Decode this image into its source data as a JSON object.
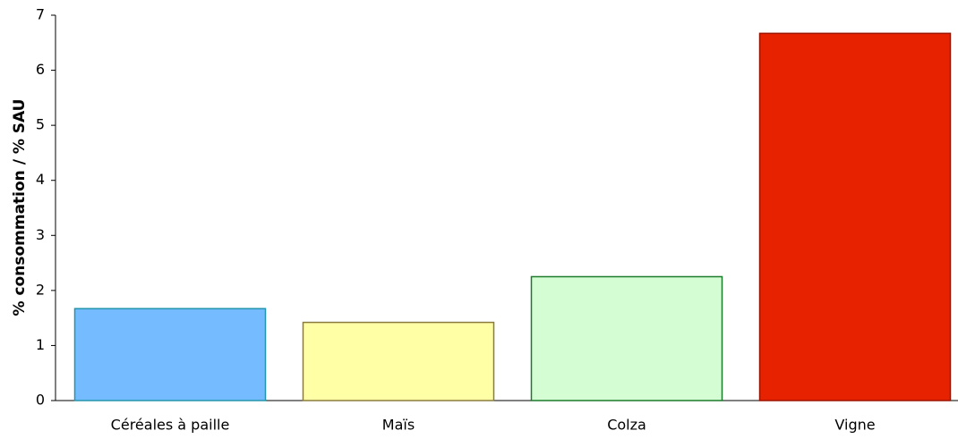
{
  "chart_data": {
    "type": "bar",
    "ylabel": "% consommation / % SAU",
    "categories": [
      "Céréales à paille",
      "Maïs",
      "Colza",
      "Vigne"
    ],
    "values": [
      1.67,
      1.42,
      2.25,
      6.67
    ],
    "colors": [
      "#74bbff",
      "#ffffa6",
      "#d4fdd4",
      "#e62200"
    ],
    "edge_colors": [
      "#2396ac",
      "#8a7b3c",
      "#1d7a2c",
      "#9e1200"
    ],
    "ylim": [
      0,
      7
    ],
    "yticks": [
      0,
      1,
      2,
      3,
      4,
      5,
      6,
      7
    ],
    "grid": false
  }
}
